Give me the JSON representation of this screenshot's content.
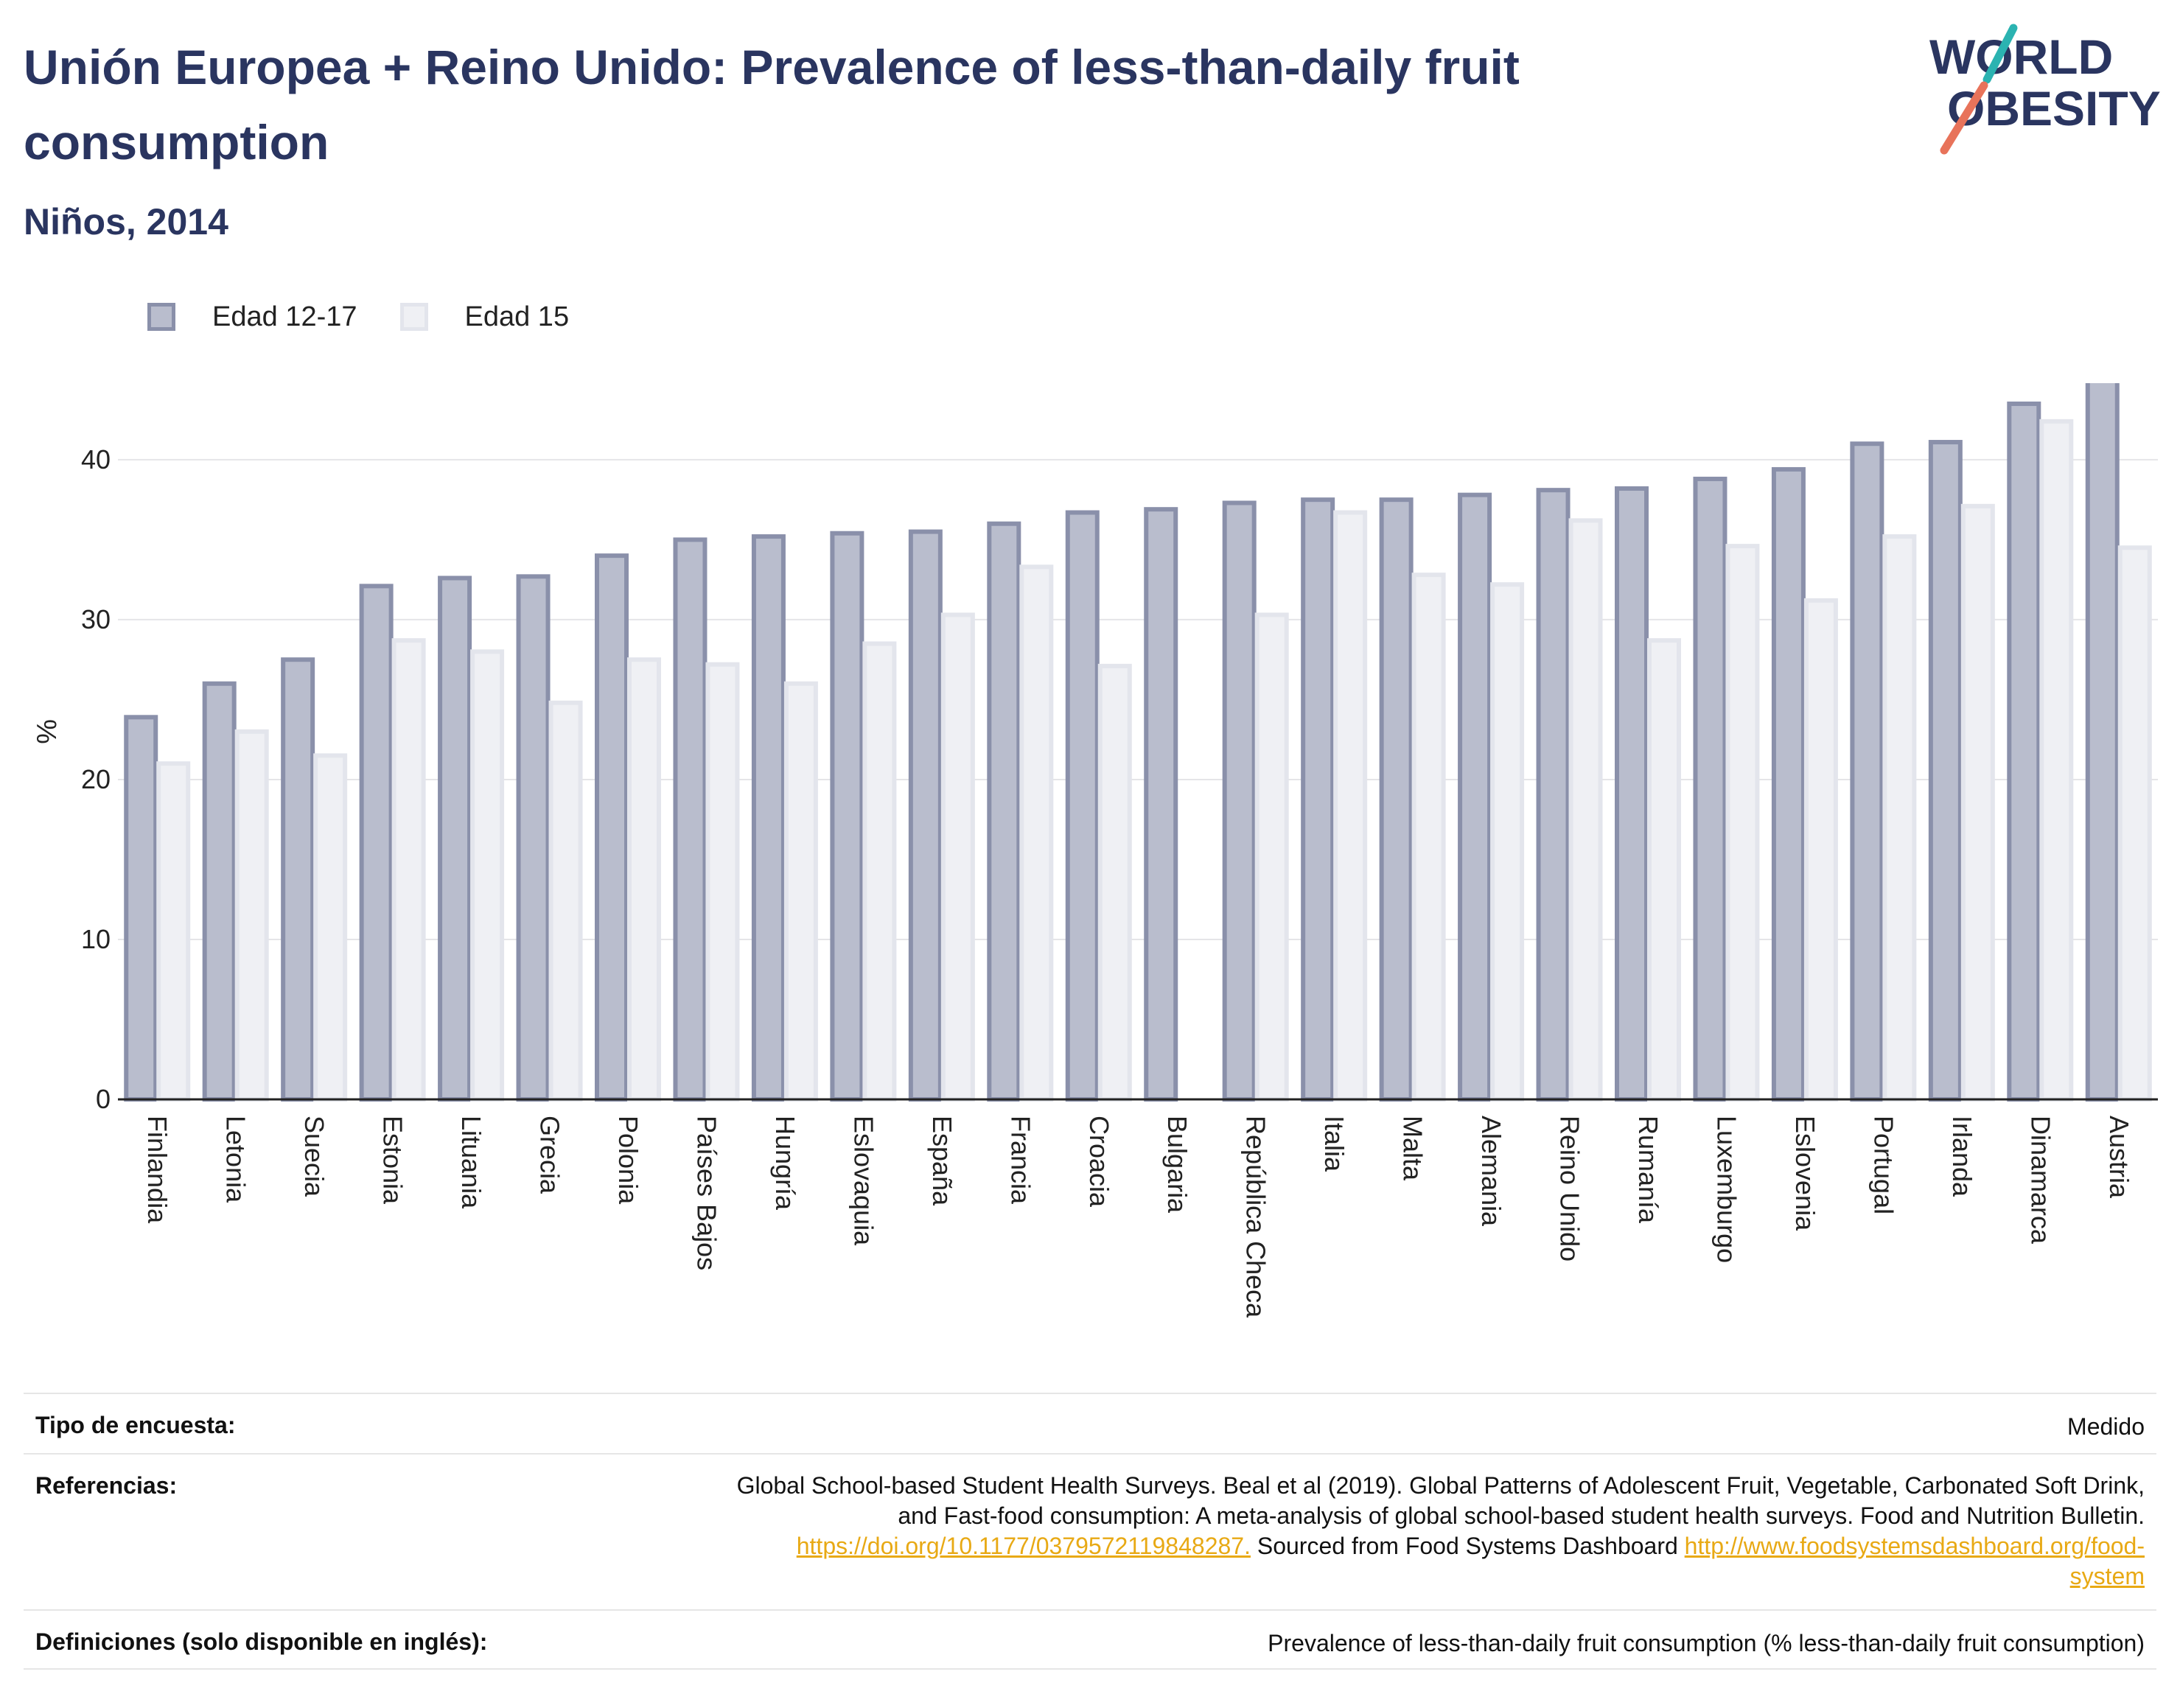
{
  "header": {
    "title": "Unión Europea + Reino Unido: Prevalence of less-than-daily fruit consumption",
    "subtitle": "Niños, 2014"
  },
  "logo": {
    "line1": "WORLD",
    "line2": "OBESITY"
  },
  "colors": {
    "title": "#2a3560",
    "series_a_fill": "#b9bdcd",
    "series_a_stroke": "#8a90aa",
    "series_b_fill": "#eff0f4",
    "series_b_stroke": "#e3e5ec",
    "logo_teal": "#2bb3b1",
    "logo_coral": "#e8735a",
    "link": "#e8a914"
  },
  "chart_data": {
    "type": "bar",
    "ylabel": "%",
    "ylim": [
      0,
      47
    ],
    "yticks": [
      0,
      10,
      20,
      30,
      40
    ],
    "grid": true,
    "legend_position": "top-left",
    "categories": [
      "Finlandia",
      "Letonia",
      "Suecia",
      "Estonia",
      "Lituania",
      "Grecia",
      "Polonia",
      "Países Bajos",
      "Hungría",
      "Eslovaquia",
      "España",
      "Francia",
      "Croacia",
      "Bulgaria",
      "República Checa",
      "Italia",
      "Malta",
      "Alemania",
      "Reino Unido",
      "Rumanía",
      "Luxemburgo",
      "Eslovenia",
      "Portugal",
      "Irlanda",
      "Dinamarca",
      "Austria"
    ],
    "series": [
      {
        "name": "Edad 12-17",
        "values": [
          23.9,
          26.0,
          27.5,
          32.1,
          32.6,
          32.7,
          34.0,
          35.0,
          35.2,
          35.4,
          35.5,
          36.0,
          36.7,
          36.9,
          37.3,
          37.5,
          37.5,
          37.8,
          38.1,
          38.2,
          38.8,
          39.4,
          41.0,
          41.1,
          43.5,
          46.1
        ]
      },
      {
        "name": "Edad 15",
        "values": [
          21.0,
          23.0,
          21.5,
          28.7,
          28.0,
          24.8,
          27.5,
          27.2,
          26.0,
          28.5,
          30.3,
          33.3,
          27.1,
          null,
          30.3,
          36.7,
          32.8,
          32.2,
          36.2,
          28.7,
          34.6,
          31.2,
          35.2,
          37.1,
          42.4,
          34.5
        ]
      }
    ]
  },
  "meta": {
    "survey_type_label": "Tipo de encuesta:",
    "survey_type_value": "Medido",
    "references_label": "Referencias:",
    "references_line1": "Global School-based Student Health Surveys. Beal et al (2019). Global Patterns of Adolescent Fruit, Vegetable, Carbonated Soft Drink,",
    "references_line2": "and Fast-food consumption: A meta-analysis of global school-based student health surveys. Food and Nutrition Bulletin.",
    "references_link1": "https://doi.org/10.1177/0379572119848287.",
    "references_mid": " Sourced from Food Systems Dashboard ",
    "references_link2_a": "http://www.foodsystemsdashboard.org/food-",
    "references_link2_b": "system",
    "definitions_label": "Definiciones (solo disponible en inglés):",
    "definitions_value": "Prevalence of less-than-daily fruit consumption (% less-than-daily fruit consumption)"
  }
}
